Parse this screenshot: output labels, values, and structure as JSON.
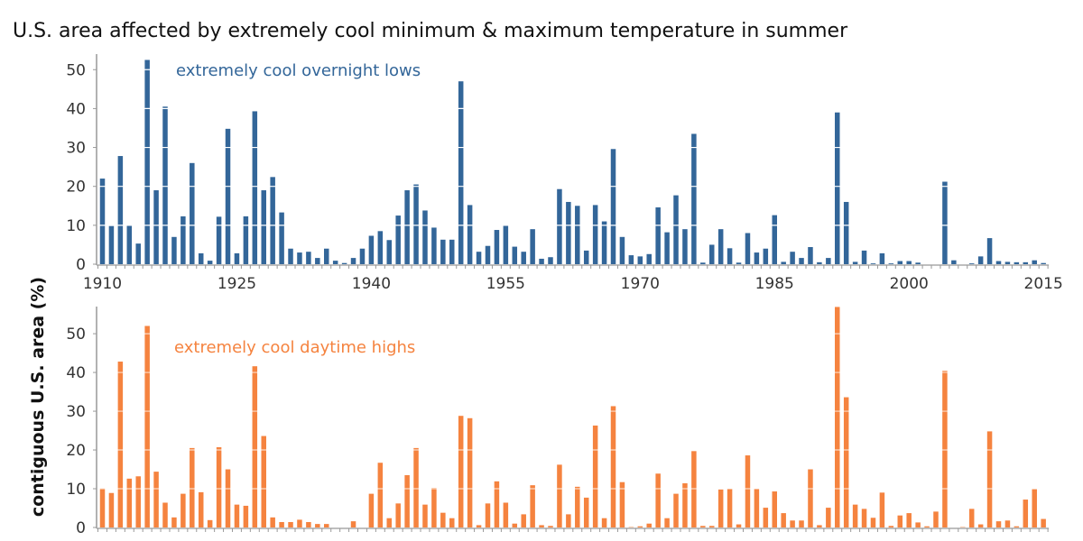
{
  "chart_data": [
    {
      "type": "bar",
      "title": "U.S. area affected by extremely cool minimum & maximum temperature in summer",
      "ylabel": "contiguous U.S. area (%)",
      "xlabel": "",
      "annotation": "extremely cool overnight lows",
      "color": "#336699",
      "x_start": 1910,
      "x_end": 2015,
      "ylim": [
        0,
        54
      ],
      "yticks": [
        0,
        10,
        20,
        30,
        40,
        50
      ],
      "xticks": [
        1910,
        1925,
        1940,
        1955,
        1970,
        1985,
        2000,
        2015
      ],
      "grid": true,
      "values": [
        22,
        9.8,
        27.8,
        10,
        5.3,
        52.5,
        19,
        40.5,
        7,
        12.3,
        26,
        2.8,
        0.9,
        12.2,
        34.8,
        2.8,
        12.3,
        39.3,
        19,
        22.4,
        13.3,
        4,
        3,
        3.2,
        1.6,
        4,
        0.9,
        0.3,
        1.6,
        4,
        7.3,
        8.5,
        6.2,
        12.5,
        19,
        20.5,
        13.8,
        9.4,
        6.3,
        6.3,
        47,
        15.2,
        3.2,
        4.7,
        8.8,
        10,
        4.5,
        3.2,
        9,
        1.4,
        1.8,
        19.3,
        16,
        15,
        3.5,
        15.2,
        11,
        29.6,
        7,
        2.3,
        2,
        2.6,
        14.6,
        8.2,
        17.7,
        9,
        33.5,
        0.4,
        5,
        9,
        4.1,
        0.4,
        8,
        3,
        4,
        12.6,
        0.6,
        3.2,
        1.6,
        4.4,
        0.5,
        1.6,
        39,
        16,
        0.6,
        3.5,
        0.2,
        2.8,
        0.2,
        0.8,
        0.8,
        0.4,
        0,
        0,
        21.2,
        1,
        0,
        0.2,
        2,
        6.7,
        0.8,
        0.6,
        0.5,
        0.5,
        1,
        0.3
      ]
    },
    {
      "type": "bar",
      "annotation": "extremely cool daytime highs",
      "color": "#f5833f",
      "x_start": 1910,
      "x_end": 2015,
      "ylim": [
        0,
        57
      ],
      "yticks": [
        0,
        10,
        20,
        30,
        40,
        50
      ],
      "grid": true,
      "values": [
        10.1,
        8.9,
        42.8,
        12.6,
        13.2,
        52,
        14.4,
        6.4,
        2.6,
        8.7,
        20.5,
        9.1,
        1.9,
        20.7,
        15,
        5.9,
        5.6,
        41.6,
        23.6,
        2.6,
        1.4,
        1.4,
        2,
        1.4,
        0.9,
        0.9,
        0,
        0,
        1.6,
        0,
        8.7,
        16.7,
        2.4,
        6.2,
        13.5,
        20.5,
        5.9,
        10.2,
        3.8,
        2.4,
        28.8,
        28.2,
        0.6,
        6.2,
        11.9,
        6.4,
        1,
        3.4,
        10.9,
        0.6,
        0.4,
        16.2,
        3.4,
        10.5,
        7.7,
        26.3,
        2.4,
        31.3,
        11.7,
        0.1,
        0.3,
        1,
        13.9,
        2.4,
        8.7,
        11.4,
        19.7,
        0.4,
        0.4,
        9.8,
        10,
        0.8,
        18.6,
        10,
        5.1,
        9.3,
        3.7,
        1.8,
        1.8,
        15,
        0.6,
        5.1,
        56.9,
        33.6,
        5.9,
        4.8,
        2.5,
        9,
        0.4,
        3.1,
        3.7,
        1.3,
        0.3,
        4.1,
        40.4,
        0,
        0.1,
        4.8,
        0.8,
        24.8,
        1.6,
        1.8,
        0.3,
        7.2,
        9.9,
        2.2
      ]
    }
  ]
}
